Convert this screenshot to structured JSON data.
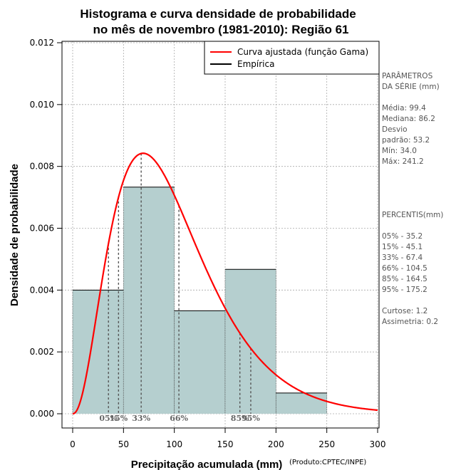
{
  "chart_data": {
    "type": "bar",
    "title": [
      "Histograma e curva densidade de probabilidade",
      "no mês de novembro (1981-2010): Região 61"
    ],
    "xlabel": "Precipitação acumulada (mm)",
    "ylabel": "Densidade de probabilidade",
    "credit": "(Produto:CPTEC/INPE)",
    "xlim": [
      0,
      300
    ],
    "ylim": [
      0,
      0.012
    ],
    "x_ticks": [
      "0",
      "50",
      "100",
      "150",
      "200",
      "250",
      "300"
    ],
    "y_ticks": [
      "0.000",
      "0.002",
      "0.004",
      "0.006",
      "0.008",
      "0.010",
      "0.012"
    ],
    "grid": true,
    "bins": [
      {
        "from": 0,
        "to": 50,
        "density": 0.004
      },
      {
        "from": 50,
        "to": 100,
        "density": 0.00733
      },
      {
        "from": 100,
        "to": 150,
        "density": 0.00333
      },
      {
        "from": 150,
        "to": 200,
        "density": 0.00467
      },
      {
        "from": 200,
        "to": 250,
        "density": 0.00067
      }
    ],
    "gamma_fit": {
      "shape": 3.3,
      "rate": 0.0332
    },
    "legend": {
      "position": "top-right",
      "items": [
        {
          "label": "Curva ajustada (função Gama)",
          "color": "#ff0000"
        },
        {
          "label": "Empírica",
          "color": "#000000"
        }
      ]
    },
    "percentile_lines": [
      {
        "label": "05%",
        "x": 35.2
      },
      {
        "label": "15%",
        "x": 45.1
      },
      {
        "label": "33%",
        "x": 67.4
      },
      {
        "label": "66%",
        "x": 104.5
      },
      {
        "label": "85%",
        "x": 164.5
      },
      {
        "label": "95%",
        "x": 175.2
      }
    ],
    "colors": {
      "bars": "#b5cfcf",
      "curve": "#ff0000",
      "grid": "#aaaaaa",
      "percentile": "#555555"
    }
  },
  "side_panel": {
    "params": [
      "PARÂMETROS",
      " DA SÉRIE (mm)",
      "",
      "Média:  99.4",
      "Mediana:  86.2",
      "Desvio",
      "padrão:  53.2",
      "Mín:  34.0",
      "Máx:  241.2"
    ],
    "percentis": [
      " PERCENTIS(mm)",
      "",
      "05% -  35.2",
      "15% -  45.1",
      "33% -  67.4",
      "66% -  104.5",
      "85% -  164.5",
      "95% -  175.2",
      "",
      "Curtose:  1.2",
      "Assimetria:  0.2"
    ]
  }
}
